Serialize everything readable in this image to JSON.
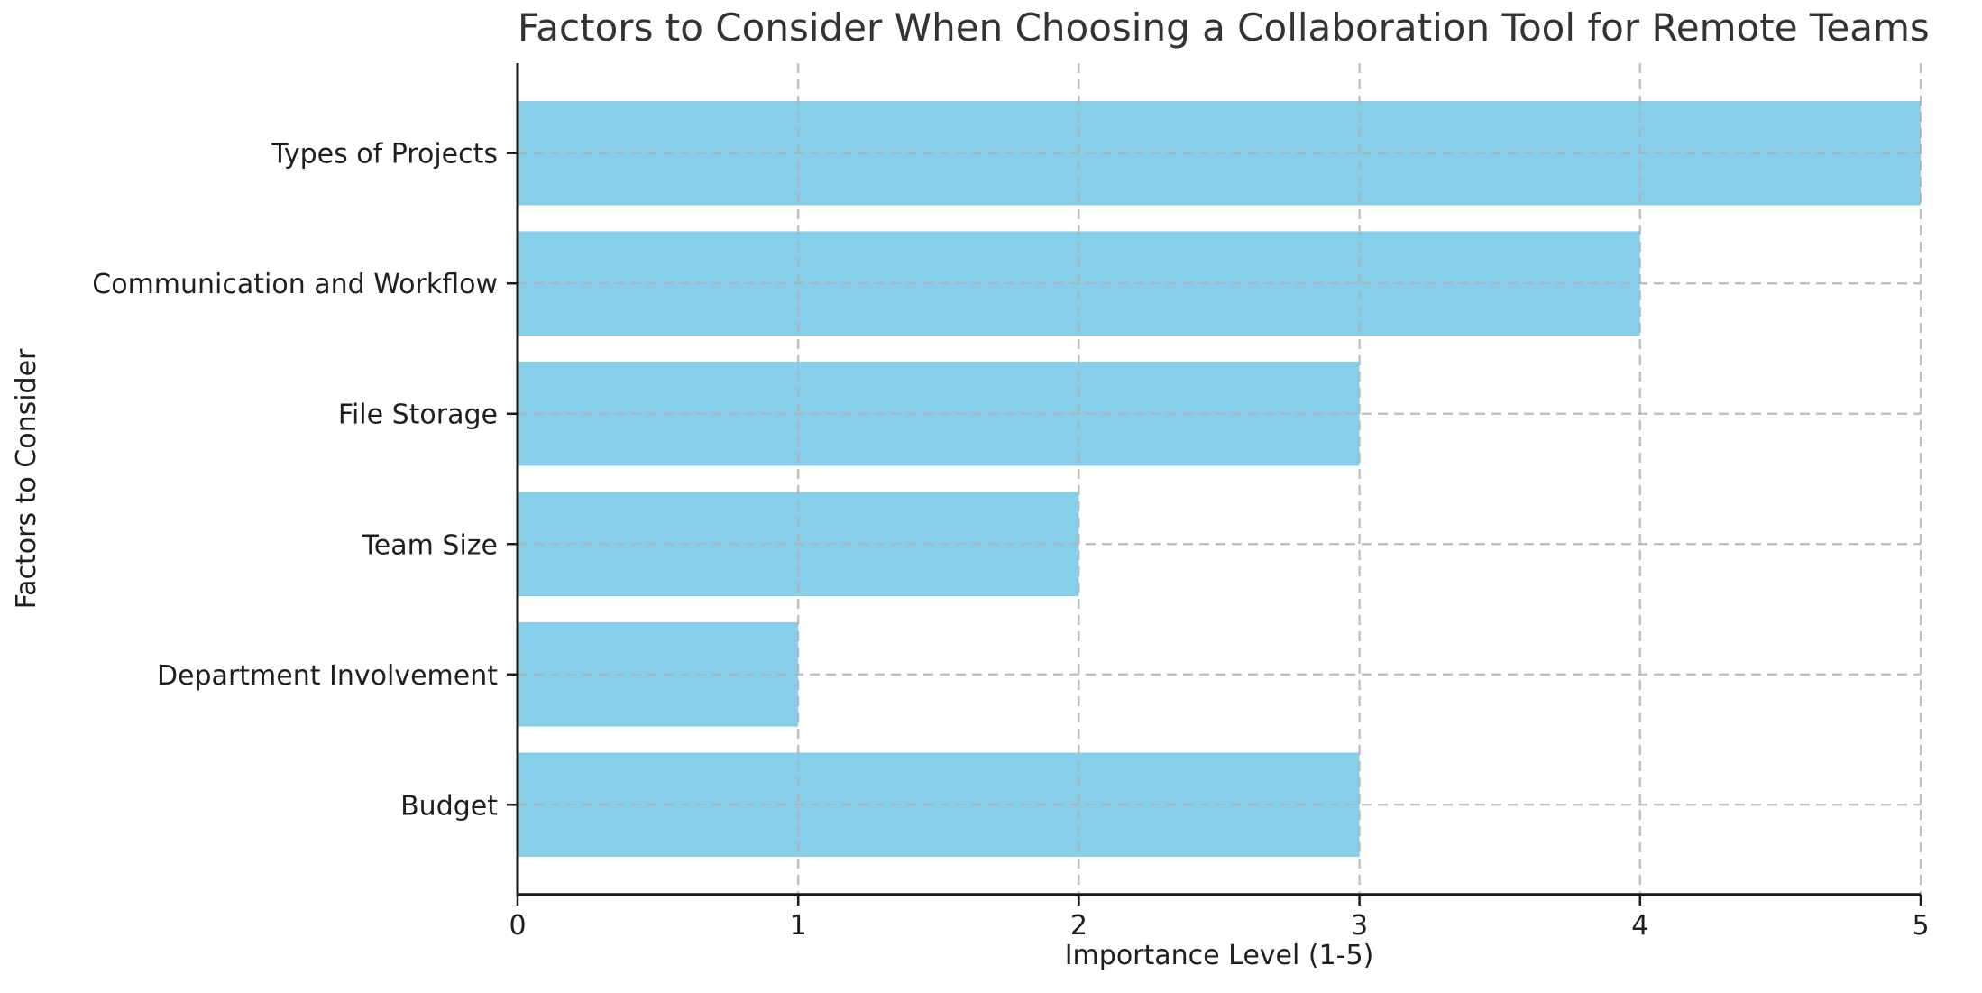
{
  "chart_data": {
    "type": "bar",
    "orientation": "horizontal",
    "title": "Factors to Consider When Choosing a Collaboration Tool for Remote Teams",
    "xlabel": "Importance Level (1-5)",
    "ylabel": "Factors to Consider",
    "categories": [
      "Types of Projects",
      "Communication and Workflow",
      "File Storage",
      "Team Size",
      "Department Involvement",
      "Budget"
    ],
    "values": [
      5,
      4,
      3,
      2,
      1,
      3
    ],
    "xlim": [
      0,
      5
    ],
    "xticks": [
      0,
      1,
      2,
      3,
      4,
      5
    ],
    "grid": {
      "show": true,
      "style": "dashed",
      "color": "#b0b0b0"
    },
    "legend": "none",
    "bar_color": "#87CEEB",
    "axis_color": "#1a1a1a",
    "text_color": "#1f1f1f",
    "title_color": "#333333",
    "background_color": "#ffffff"
  }
}
